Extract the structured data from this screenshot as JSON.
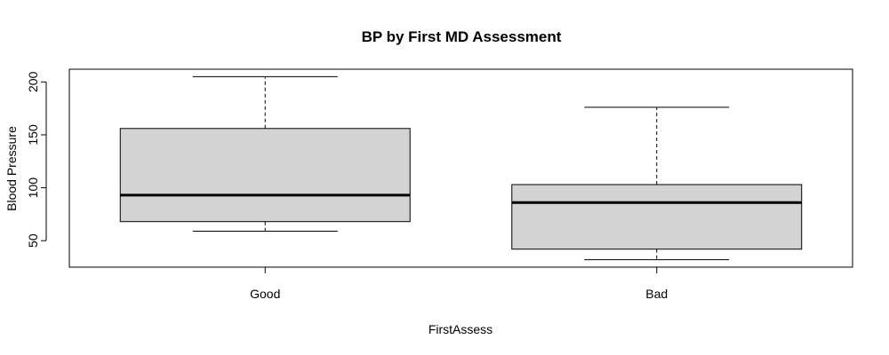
{
  "chart_data": {
    "type": "box",
    "title": "BP by First MD Assessment",
    "xlabel": "FirstAssess",
    "ylabel": "Blood Pressure",
    "ylim": [
      25,
      212
    ],
    "yticks": [
      50,
      100,
      150,
      200
    ],
    "categories": [
      "Good",
      "Bad"
    ],
    "boxes": [
      {
        "category": "Good",
        "min": 59,
        "q1": 68,
        "median": 93,
        "q3": 156,
        "max": 205
      },
      {
        "category": "Bad",
        "min": 32,
        "q1": 42,
        "median": 86,
        "q3": 103,
        "max": 176
      }
    ],
    "box_fill": "#d3d3d3",
    "grid": false
  }
}
